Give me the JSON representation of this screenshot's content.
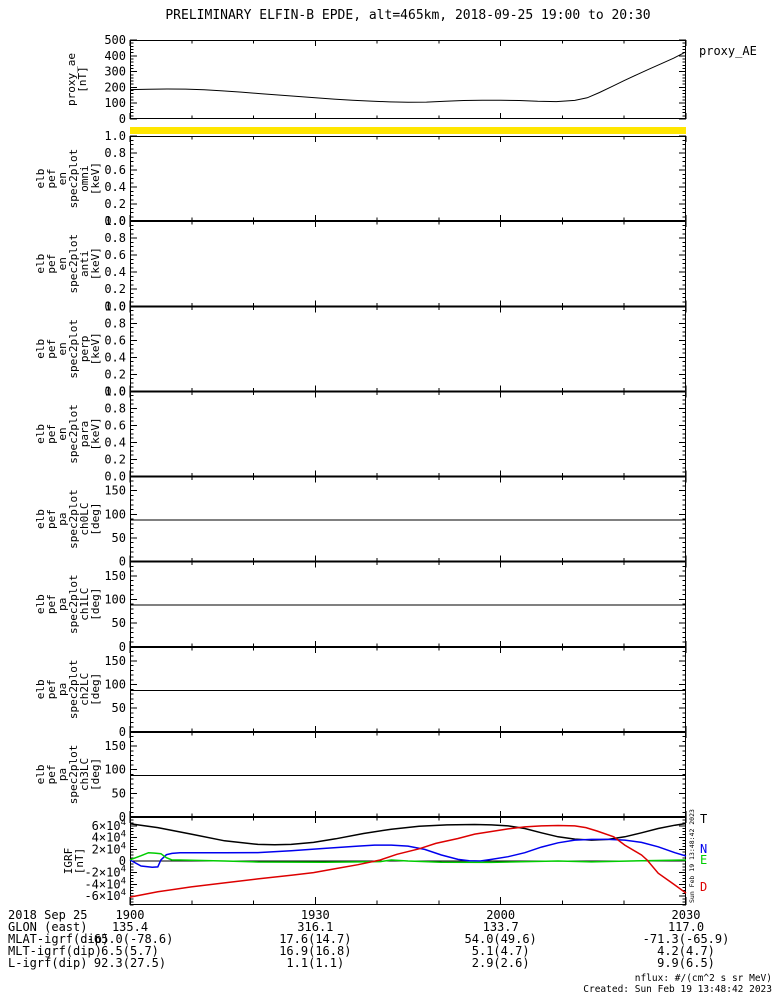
{
  "title": "PRELIMINARY ELFIN-B EPDE, alt=465km, 2018-09-25 19:00 to 20:30",
  "right_labels": {
    "proxy": "proxy_AE"
  },
  "watermark": "Sun Feb 19 13:48:42 2023",
  "footer": {
    "units": "nflux: #/(cm^2 s sr MeV)",
    "created": "Created: Sun Feb 19 13:48:42 2023"
  },
  "colors": {
    "availability_bar": "#ffe600",
    "axis": "#000000",
    "T": "#000000",
    "N": "#0000ee",
    "E": "#00cc00",
    "D": "#dd0000"
  },
  "ephemeris": {
    "date": "2018 Sep 25",
    "times": [
      "1900",
      "1930",
      "2000",
      "2030"
    ],
    "rows": [
      {
        "label": "GLON (east)",
        "values": [
          "135.4",
          "316.1",
          "133.7",
          "117.0"
        ]
      },
      {
        "label": "MLAT-igrf(dip)",
        "values": [
          "-65.0(-78.6)",
          "17.6(14.7)",
          "54.0(49.6)",
          "-71.3(-65.9)"
        ]
      },
      {
        "label": "MLT-igrf(dip)",
        "values": [
          "6.5(5.7)",
          "16.9(16.8)",
          "5.1(4.7)",
          "4.2(4.7)"
        ]
      },
      {
        "label": "L-igrf(dip)",
        "values": [
          "92.3(27.5)",
          "1.1(1.1)",
          "2.9(2.6)",
          "9.9(6.5)"
        ]
      }
    ]
  },
  "igrf_line_labels": [
    {
      "label": "T",
      "color": "#000000"
    },
    {
      "label": "N",
      "color": "#0000ee"
    },
    {
      "label": "E",
      "color": "#00cc00"
    },
    {
      "label": "D",
      "color": "#dd0000"
    }
  ],
  "chart_data": {
    "type": "line",
    "x_axis": {
      "range_minutes": [
        0,
        90
      ],
      "minor_tick_minutes": [
        0,
        10,
        20,
        30,
        40,
        50,
        60,
        70,
        80,
        90
      ],
      "major_tick_minutes": [
        0,
        30,
        60,
        90
      ],
      "major_labels": [
        "1900",
        "1930",
        "2000",
        "2030"
      ]
    },
    "availability_bar": {
      "present": true,
      "color": "#ffe600"
    },
    "panels": [
      {
        "id": "proxy_ae",
        "type": "line",
        "ylabel_lines": [
          "proxy_ae",
          "[nT]"
        ],
        "ylim": [
          0,
          500
        ],
        "yminor": 20,
        "yticks": [
          {
            "v": 0,
            "l": "0"
          },
          {
            "v": 100,
            "l": "100"
          },
          {
            "v": 200,
            "l": "200"
          },
          {
            "v": 300,
            "l": "300"
          },
          {
            "v": 400,
            "l": "400"
          },
          {
            "v": 500,
            "l": "500"
          }
        ],
        "series": [
          {
            "name": "proxy_AE",
            "color": "#000000",
            "x": [
              0,
              3,
              6,
              9,
              12,
              15,
              18,
              21,
              24,
              27,
              30,
              33,
              36,
              39,
              42,
              45,
              48,
              51,
              54,
              57,
              60,
              63,
              66,
              69,
              72,
              74,
              76,
              78,
              80,
              82,
              84,
              86,
              88,
              90
            ],
            "y": [
              186,
              188,
              190,
              189,
              185,
              178,
              170,
              161,
              152,
              143,
              134,
              126,
              119,
              113,
              108,
              106,
              107,
              112,
              117,
              119,
              119,
              117,
              112,
              110,
              118,
              134,
              168,
              205,
              243,
              280,
              315,
              350,
              385,
              425
            ]
          }
        ]
      },
      {
        "id": "elb_pef_en_spec2plot_omni",
        "type": "empty",
        "ylabel_lines": [
          "elb",
          "pef",
          "en",
          "spec2plot",
          "omni",
          "[keV]"
        ],
        "ylim": [
          0,
          1
        ],
        "yminor": 0.05,
        "yticks": [
          {
            "v": 0,
            "l": "0.0"
          },
          {
            "v": 0.2,
            "l": "0.2"
          },
          {
            "v": 0.4,
            "l": "0.4"
          },
          {
            "v": 0.6,
            "l": "0.6"
          },
          {
            "v": 0.8,
            "l": "0.8"
          },
          {
            "v": 1,
            "l": "1.0"
          }
        ],
        "series": []
      },
      {
        "id": "elb_pef_en_spec2plot_anti",
        "type": "empty",
        "ylabel_lines": [
          "elb",
          "pef",
          "en",
          "spec2plot",
          "anti",
          "[keV]"
        ],
        "ylim": [
          0,
          1
        ],
        "yminor": 0.05,
        "yticks": [
          {
            "v": 0,
            "l": "0.0"
          },
          {
            "v": 0.2,
            "l": "0.2"
          },
          {
            "v": 0.4,
            "l": "0.4"
          },
          {
            "v": 0.6,
            "l": "0.6"
          },
          {
            "v": 0.8,
            "l": "0.8"
          },
          {
            "v": 1,
            "l": "1.0"
          }
        ],
        "series": []
      },
      {
        "id": "elb_pef_en_spec2plot_perp",
        "type": "empty",
        "ylabel_lines": [
          "elb",
          "pef",
          "en",
          "spec2plot",
          "perp",
          "[keV]"
        ],
        "ylim": [
          0,
          1
        ],
        "yminor": 0.05,
        "yticks": [
          {
            "v": 0,
            "l": "0.0"
          },
          {
            "v": 0.2,
            "l": "0.2"
          },
          {
            "v": 0.4,
            "l": "0.4"
          },
          {
            "v": 0.6,
            "l": "0.6"
          },
          {
            "v": 0.8,
            "l": "0.8"
          },
          {
            "v": 1,
            "l": "1.0"
          }
        ],
        "series": []
      },
      {
        "id": "elb_pef_en_spec2plot_para",
        "type": "empty",
        "ylabel_lines": [
          "elb",
          "pef",
          "en",
          "spec2plot",
          "para",
          "[keV]"
        ],
        "ylim": [
          0,
          1
        ],
        "yminor": 0.05,
        "yticks": [
          {
            "v": 0,
            "l": "0.0"
          },
          {
            "v": 0.2,
            "l": "0.2"
          },
          {
            "v": 0.4,
            "l": "0.4"
          },
          {
            "v": 0.6,
            "l": "0.6"
          },
          {
            "v": 0.8,
            "l": "0.8"
          },
          {
            "v": 1,
            "l": "1.0"
          }
        ],
        "series": []
      },
      {
        "id": "elb_pef_pa_spec2plot_ch0LC",
        "type": "hline",
        "ylabel_lines": [
          "elb",
          "pef",
          "pa",
          "spec2plot",
          "ch0LC",
          "[deg]"
        ],
        "ylim": [
          0,
          180
        ],
        "yminor": 10,
        "hline": 88,
        "yticks": [
          {
            "v": 0,
            "l": "0"
          },
          {
            "v": 50,
            "l": "50"
          },
          {
            "v": 100,
            "l": "100"
          },
          {
            "v": 150,
            "l": "150"
          }
        ],
        "series": []
      },
      {
        "id": "elb_pef_pa_spec2plot_ch1LC",
        "type": "hline",
        "ylabel_lines": [
          "elb",
          "pef",
          "pa",
          "spec2plot",
          "ch1LC",
          "[deg]"
        ],
        "ylim": [
          0,
          180
        ],
        "yminor": 10,
        "hline": 88,
        "yticks": [
          {
            "v": 0,
            "l": "0"
          },
          {
            "v": 50,
            "l": "50"
          },
          {
            "v": 100,
            "l": "100"
          },
          {
            "v": 150,
            "l": "150"
          }
        ],
        "series": []
      },
      {
        "id": "elb_pef_pa_spec2plot_ch2LC",
        "type": "hline",
        "ylabel_lines": [
          "elb",
          "pef",
          "pa",
          "spec2plot",
          "ch2LC",
          "[deg]"
        ],
        "ylim": [
          0,
          180
        ],
        "yminor": 10,
        "hline": 88,
        "yticks": [
          {
            "v": 0,
            "l": "0"
          },
          {
            "v": 50,
            "l": "50"
          },
          {
            "v": 100,
            "l": "100"
          },
          {
            "v": 150,
            "l": "150"
          }
        ],
        "series": []
      },
      {
        "id": "elb_pef_pa_spec2plot_ch3LC",
        "type": "hline",
        "ylabel_lines": [
          "elb",
          "pef",
          "pa",
          "spec2plot",
          "ch3LC",
          "[deg]"
        ],
        "ylim": [
          0,
          180
        ],
        "yminor": 10,
        "hline": 88,
        "yticks": [
          {
            "v": 0,
            "l": "0"
          },
          {
            "v": 50,
            "l": "50"
          },
          {
            "v": 100,
            "l": "100"
          },
          {
            "v": 150,
            "l": "150"
          }
        ],
        "series": []
      },
      {
        "id": "igrf",
        "type": "line",
        "ylabel_lines": [
          "IGRF",
          "[nT]"
        ],
        "ylim": [
          -75000,
          75000
        ],
        "yminor": 5000,
        "hline": 0,
        "yticks": [
          {
            "v": -60000,
            "l": "-6×10^4"
          },
          {
            "v": -40000,
            "l": "-4×10^4"
          },
          {
            "v": -20000,
            "l": "-2×10^4"
          },
          {
            "v": 0,
            "l": "0"
          },
          {
            "v": 20000,
            "l": "2×10^4"
          },
          {
            "v": 40000,
            "l": "4×10^4"
          },
          {
            "v": 60000,
            "l": "6×10^4"
          }
        ],
        "series": [
          {
            "name": "T",
            "color": "#000000",
            "x": [
              0,
              4.5,
              9.9,
              15.3,
              20.7,
              23.4,
              26.1,
              29.7,
              33.3,
              37.8,
              42.3,
              46.8,
              51.3,
              55.8,
              58.5,
              61.2,
              63.9,
              66.6,
              69.3,
              72,
              74.7,
              77.4,
              80.1,
              82.8,
              85.5,
              88.2,
              90
            ],
            "y": [
              63500,
              57000,
              45800,
              34400,
              28300,
              27600,
              28300,
              31700,
              37800,
              46900,
              54200,
              59300,
              61500,
              62200,
              61500,
              59800,
              55400,
              48000,
              41200,
              37300,
              35600,
              36800,
              41200,
              48000,
              55400,
              61000,
              63900
            ]
          },
          {
            "name": "N",
            "color": "#0000ee",
            "x": [
              0,
              1.8,
              3.6,
              4.5,
              5,
              5.9,
              6.8,
              8.1,
              15.3,
              20.7,
              26.1,
              31.5,
              36.9,
              39.6,
              42.3,
              45,
              47.7,
              50.4,
              53.1,
              54.9,
              56.7,
              58.5,
              61.2,
              63.9,
              66.6,
              69.3,
              72,
              74.7,
              77.4,
              80.1,
              82.8,
              85.5,
              88.2,
              90
            ],
            "y": [
              1700,
              -8500,
              -10700,
              -10000,
              1700,
              10700,
              13000,
              14100,
              14200,
              14400,
              17500,
              21400,
              25400,
              27100,
              27100,
              25400,
              19700,
              10300,
              2800,
              500,
              0,
              2800,
              7300,
              14100,
              23700,
              31000,
              35600,
              36800,
              36800,
              35600,
              31700,
              24200,
              14100,
              8500
            ]
          },
          {
            "name": "E",
            "color": "#00cc00",
            "x": [
              0,
              1.8,
              3,
              4,
              5,
              5.9,
              6.8,
              8.1,
              15.3,
              20.7,
              31.5,
              40.5,
              42.3,
              45,
              50.4,
              58.5,
              69.3,
              74.7,
              81,
              90
            ],
            "y": [
              2000,
              9000,
              14100,
              13500,
              12400,
              5600,
              1700,
              1700,
              0,
              -1700,
              -2000,
              -1000,
              1700,
              0,
              -2000,
              -2400,
              0,
              -1500,
              0,
              1700
            ]
          },
          {
            "name": "D",
            "color": "#dd0000",
            "x": [
              0,
              4.5,
              9.9,
              15.3,
              20.7,
              26.1,
              29.7,
              33.3,
              36.9,
              40.5,
              43.2,
              46.8,
              49.5,
              53.1,
              55.8,
              58.5,
              61.2,
              63.9,
              66.6,
              69.3,
              72,
              73.8,
              75.6,
              78.3,
              80.1,
              82.8,
              83.7,
              85.5,
              87.8,
              90
            ],
            "y": [
              -61500,
              -52500,
              -44100,
              -37300,
              -30500,
              -24200,
              -19800,
              -13000,
              -6300,
              1700,
              11400,
              20800,
              30000,
              38400,
              45800,
              50300,
              54700,
              58100,
              59800,
              60500,
              59800,
              56900,
              51200,
              41200,
              27100,
              10300,
              1700,
              -20800,
              -37800,
              -54700
            ]
          }
        ]
      }
    ]
  }
}
